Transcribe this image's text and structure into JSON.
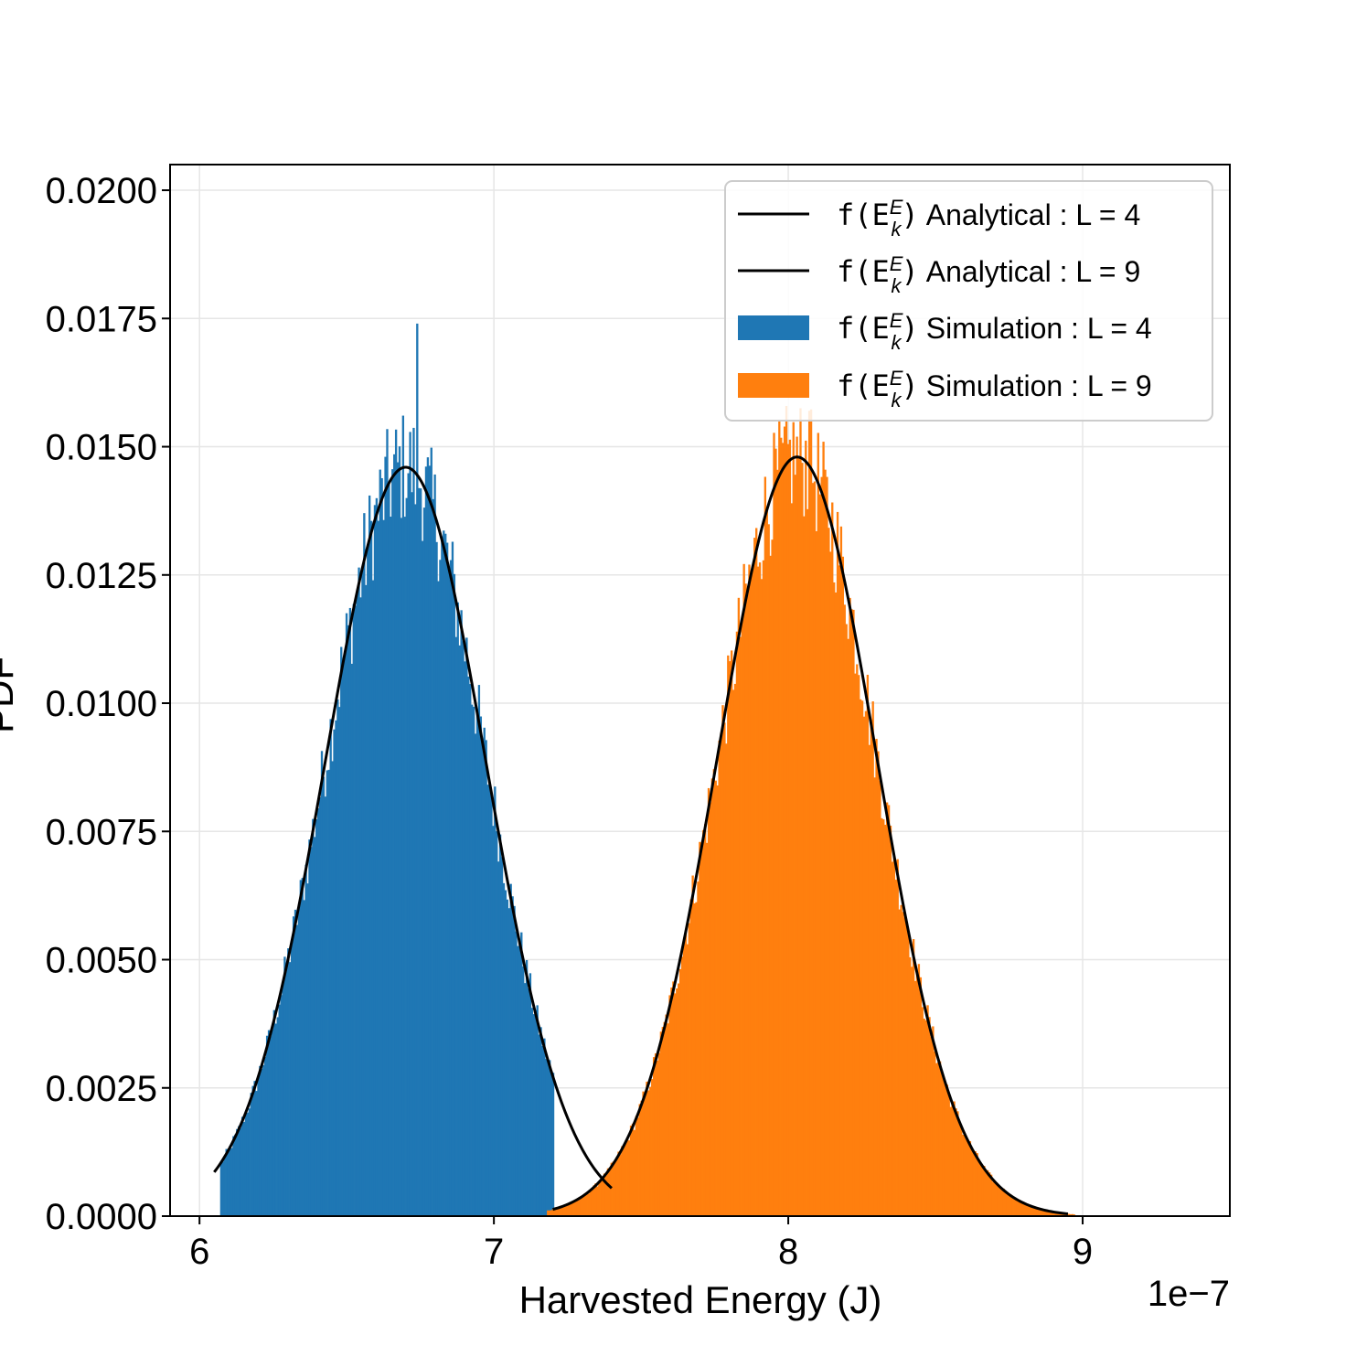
{
  "chart_data": {
    "type": "bar",
    "title": "",
    "xlabel": "Harvested Energy (J)",
    "ylabel": "PDF",
    "x_offset_text": "1e−7",
    "xlim": [
      5.9,
      9.5
    ],
    "ylim": [
      0.0,
      0.0205
    ],
    "x_scale": 1e-07,
    "x_ticks": [
      6,
      7,
      8,
      9
    ],
    "x_tick_labels": [
      "6",
      "7",
      "8",
      "9"
    ],
    "y_ticks": [
      0.0,
      0.0025,
      0.005,
      0.0075,
      0.01,
      0.0125,
      0.015,
      0.0175,
      0.02
    ],
    "y_tick_labels": [
      "0.0000",
      "0.0025",
      "0.0050",
      "0.0075",
      "0.0100",
      "0.0125",
      "0.0150",
      "0.0175",
      "0.0200"
    ],
    "grid": true,
    "legend_position": "top-right",
    "series": [
      {
        "name": "Analytical : L = 4",
        "kind": "line",
        "mean": 6.7,
        "std": 0.273,
        "peak": 0.0146,
        "x_range": [
          6.05,
          7.4
        ],
        "color": "#000000"
      },
      {
        "name": "Analytical : L = 9",
        "kind": "line",
        "mean": 8.03,
        "std": 0.27,
        "peak": 0.0148,
        "x_range": [
          7.2,
          8.95
        ],
        "color": "#000000"
      },
      {
        "name": "Simulation : L = 4",
        "kind": "histogram",
        "mean": 6.7,
        "std": 0.273,
        "peak": 0.0146,
        "x_range": [
          6.07,
          7.2
        ],
        "max_bar": 0.0174,
        "color": "#1f77b4"
      },
      {
        "name": "Simulation : L = 9",
        "kind": "histogram",
        "mean": 8.03,
        "std": 0.27,
        "peak": 0.0148,
        "x_range": [
          7.18,
          8.97
        ],
        "max_bar": 0.0157,
        "color": "#ff7f0e"
      }
    ]
  }
}
